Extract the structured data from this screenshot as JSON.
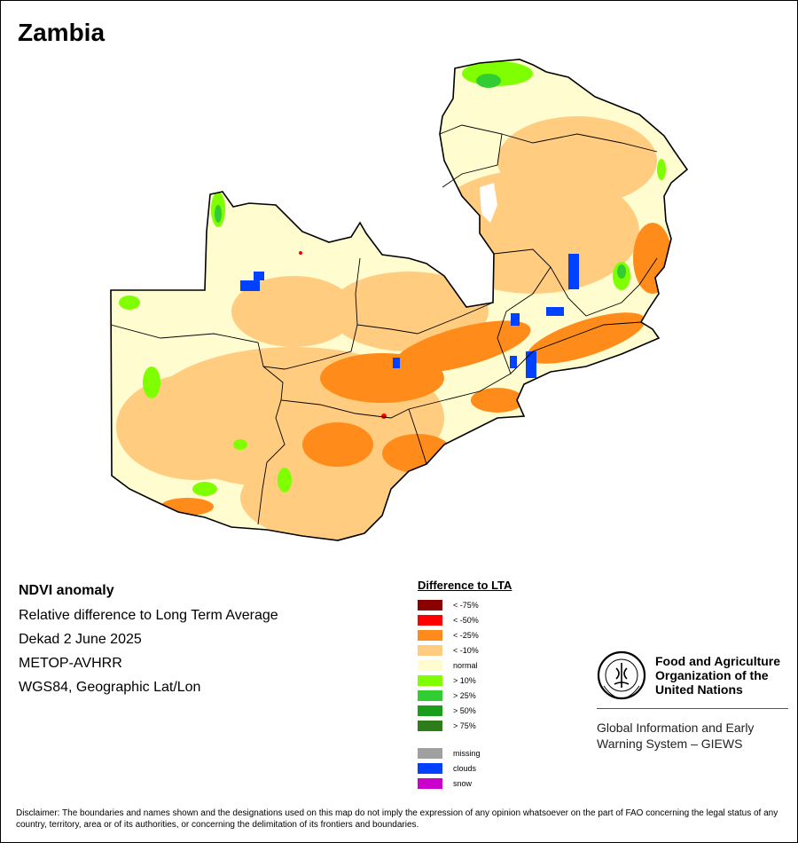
{
  "title": "Zambia",
  "info": {
    "product": "NDVI anomaly",
    "description": "Relative difference to Long Term Average",
    "period": "Dekad 2 June 2025",
    "sensor": "METOP-AVHRR",
    "projection": "WGS84, Geographic Lat/Lon"
  },
  "legend": {
    "title": "Difference to LTA",
    "items": [
      {
        "label": "< -75%",
        "color": "#8B0000"
      },
      {
        "label": "< -50%",
        "color": "#FF0000"
      },
      {
        "label": "< -25%",
        "color": "#FF8C1A"
      },
      {
        "label": "< -10%",
        "color": "#FFCC80"
      },
      {
        "label": "normal",
        "color": "#FFFDD0"
      },
      {
        "label": "> 10%",
        "color": "#7FFF00"
      },
      {
        "label": "> 25%",
        "color": "#32CD32"
      },
      {
        "label": "> 50%",
        "color": "#1A9E1A"
      },
      {
        "label": "> 75%",
        "color": "#2E7D1A"
      }
    ],
    "extra": [
      {
        "label": "missing",
        "color": "#A0A0A0"
      },
      {
        "label": "clouds",
        "color": "#0040FF"
      },
      {
        "label": "snow",
        "color": "#CC00CC"
      }
    ]
  },
  "org": {
    "name_line1": "Food and Agriculture",
    "name_line2": "Organization of the",
    "name_line3": "United Nations",
    "giews_line1": "Global Information and Early",
    "giews_line2": "Warning System – GIEWS"
  },
  "disclaimer": "Disclaimer: The boundaries and names shown and the designations used on this map do not imply the expression of any opinion whatsoever on the part of FAO concerning the legal status of any country, territory, area or of its authorities, or concerning the delimitation of its frontiers and boundaries."
}
